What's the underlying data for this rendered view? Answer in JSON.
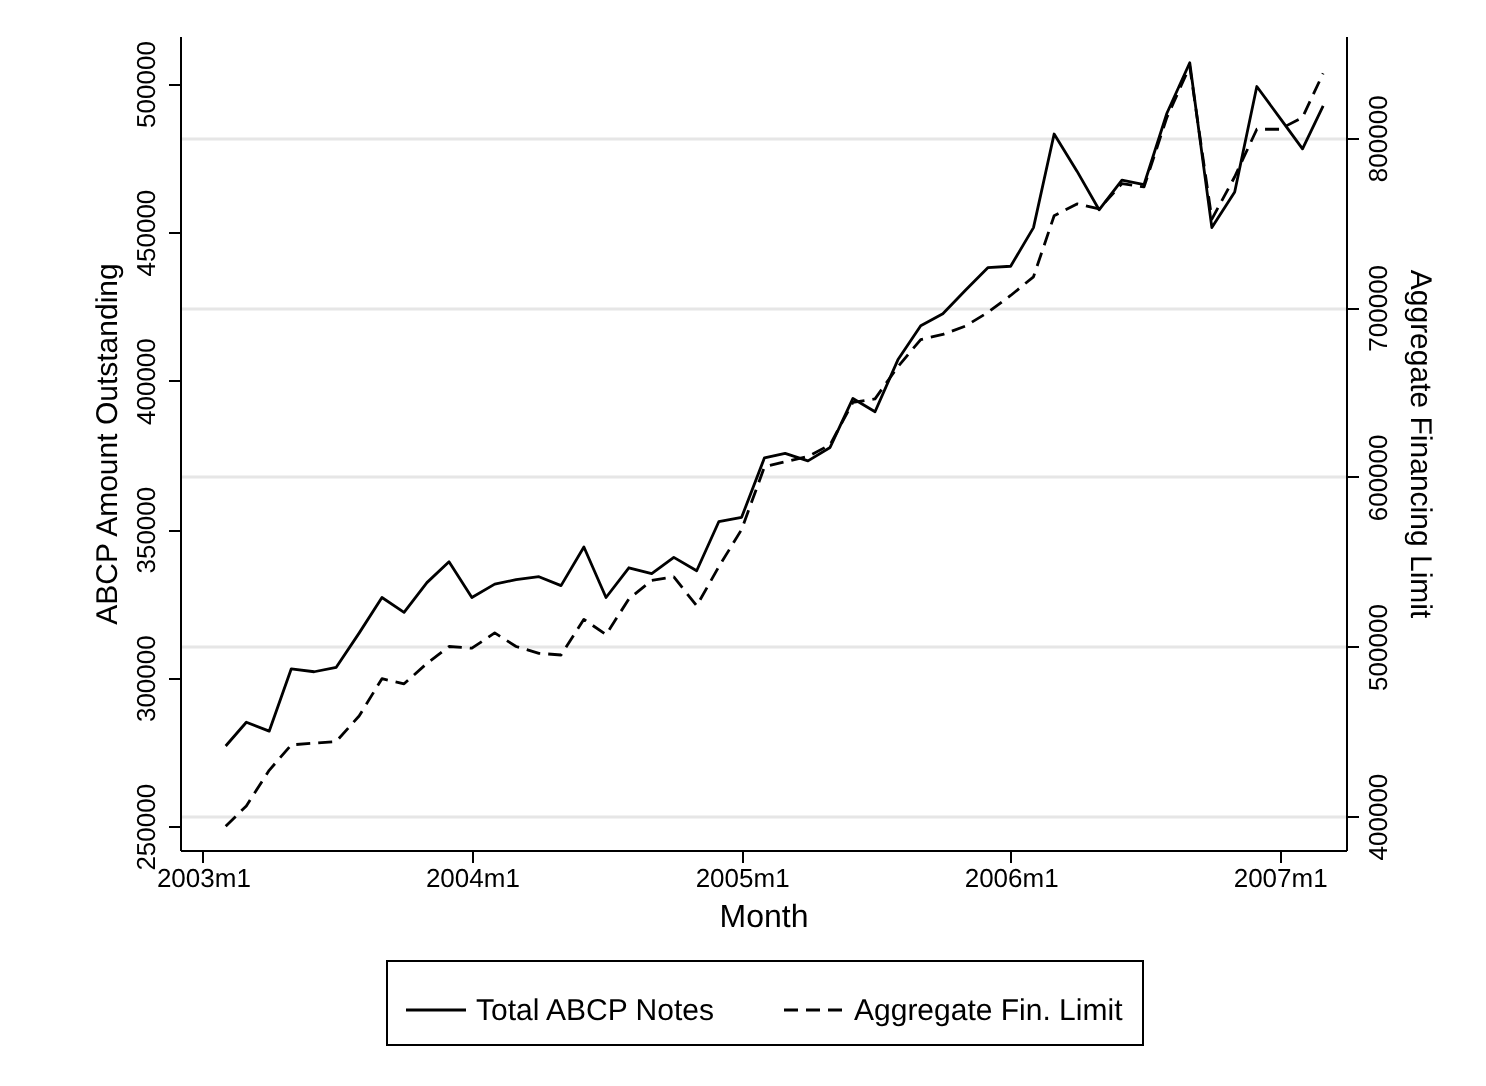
{
  "chart_data": {
    "type": "line",
    "xlabel": "Month",
    "ylabel": "ABCP Amount Outstanding",
    "y2label": "Aggregate Financing Limit",
    "x": [
      "2003-02",
      "2003-03",
      "2003-04",
      "2003-05",
      "2003-06",
      "2003-07",
      "2003-08",
      "2003-09",
      "2003-10",
      "2003-11",
      "2003-12",
      "2004-01",
      "2004-02",
      "2004-03",
      "2004-04",
      "2004-05",
      "2004-06",
      "2004-07",
      "2004-08",
      "2004-09",
      "2004-10",
      "2004-11",
      "2004-12",
      "2005-01",
      "2005-02",
      "2005-03",
      "2005-04",
      "2005-05",
      "2005-06",
      "2005-07",
      "2005-08",
      "2005-09",
      "2005-10",
      "2005-11",
      "2005-12",
      "2006-01",
      "2006-02",
      "2006-03",
      "2006-04",
      "2006-05",
      "2006-06",
      "2006-07",
      "2006-08",
      "2006-09",
      "2006-10",
      "2006-11",
      "2006-12",
      "2007-01",
      "2007-02",
      "2007-03"
    ],
    "series": [
      {
        "name": "Total ABCP Notes",
        "color": "#000000",
        "line_style": "solid",
        "axis": "y",
        "values": [
          277000,
          285000,
          282000,
          303000,
          302000,
          303500,
          315000,
          327000,
          322000,
          332000,
          339000,
          327000,
          331500,
          333000,
          334000,
          331000,
          344000,
          327000,
          337000,
          335000,
          340500,
          336000,
          352500,
          354000,
          374000,
          375500,
          373000,
          377500,
          394000,
          389500,
          407000,
          418500,
          422500,
          430500,
          438000,
          438500,
          451500,
          483000,
          470500,
          457500,
          467500,
          466000,
          490000,
          507000,
          451500,
          463500,
          499000,
          488500,
          478000,
          492500
        ]
      },
      {
        "name": "Aggregate Fin. Limit",
        "color": "#000000",
        "line_style": "dashed",
        "axis": "y2",
        "values": [
          394000,
          406000,
          427000,
          442000,
          443000,
          444000,
          459000,
          481000,
          478000,
          490000,
          500000,
          499000,
          508000,
          500000,
          496000,
          495000,
          516000,
          507000,
          528000,
          539000,
          541000,
          524000,
          547000,
          569000,
          606000,
          609000,
          612000,
          619000,
          644000,
          646000,
          665000,
          681000,
          684000,
          689000,
          697000,
          707000,
          718000,
          754000,
          761000,
          758000,
          773000,
          771000,
          812000,
          842000,
          752000,
          777000,
          805000,
          805000,
          812000,
          838000
        ]
      }
    ],
    "xlim": [
      "2002-12",
      "2007-04"
    ],
    "xticks": [
      {
        "value": "2003-01",
        "label": "2003m1"
      },
      {
        "value": "2004-01",
        "label": "2004m1"
      },
      {
        "value": "2005-01",
        "label": "2005m1"
      },
      {
        "value": "2006-01",
        "label": "2006m1"
      },
      {
        "value": "2007-01",
        "label": "2007m1"
      }
    ],
    "ylim": [
      242000,
      516000
    ],
    "yticks": [
      250000,
      300000,
      350000,
      400000,
      450000,
      500000
    ],
    "y2lim": [
      380000,
      860000
    ],
    "y2ticks": [
      400000,
      500000,
      600000,
      700000,
      800000
    ],
    "grid": "y2",
    "legend": "bottom"
  }
}
